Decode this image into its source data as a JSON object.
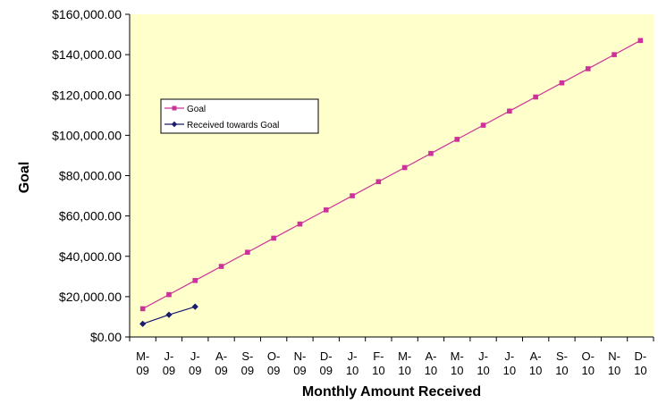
{
  "chart_data": {
    "type": "line",
    "title": "",
    "xlabel": "Monthly Amount Received",
    "ylabel": "Goal",
    "ylim": [
      0,
      160000
    ],
    "y_tick_values": [
      0,
      20000,
      40000,
      60000,
      80000,
      100000,
      120000,
      140000,
      160000
    ],
    "y_tick_labels": [
      "$0.00",
      "$20,000.00",
      "$40,000.00",
      "$60,000.00",
      "$80,000.00",
      "$100,000.00",
      "$120,000.00",
      "$140,000.00",
      "$160,000.00"
    ],
    "categories": [
      "M-09",
      "J-09",
      "J-09",
      "A-09",
      "S-09",
      "O-09",
      "N-09",
      "D-09",
      "J-10",
      "F-10",
      "M-10",
      "A-10",
      "M-10",
      "J-10",
      "J-10",
      "A-10",
      "S-10",
      "O-10",
      "N-10",
      "D-10"
    ],
    "category_lines": [
      [
        "M-",
        "09"
      ],
      [
        "J-",
        "09"
      ],
      [
        "J-",
        "09"
      ],
      [
        "A-",
        "09"
      ],
      [
        "S-",
        "09"
      ],
      [
        "O-",
        "09"
      ],
      [
        "N-",
        "09"
      ],
      [
        "D-",
        "09"
      ],
      [
        "J-",
        "10"
      ],
      [
        "F-",
        "10"
      ],
      [
        "M-",
        "10"
      ],
      [
        "A-",
        "10"
      ],
      [
        "M-",
        "10"
      ],
      [
        "J-",
        "10"
      ],
      [
        "J-",
        "10"
      ],
      [
        "A-",
        "10"
      ],
      [
        "S-",
        "10"
      ],
      [
        "O-",
        "10"
      ],
      [
        "N-",
        "10"
      ],
      [
        "D-",
        "10"
      ]
    ],
    "series": [
      {
        "name": "Goal",
        "color": "#cc3399",
        "marker": "square",
        "values": [
          14000,
          21000,
          28000,
          35000,
          42000,
          49000,
          56000,
          63000,
          70000,
          77000,
          84000,
          91000,
          98000,
          105000,
          112000,
          119000,
          126000,
          133000,
          140000,
          147000
        ]
      },
      {
        "name": "Received towards Goal",
        "color": "#1a1a6e",
        "marker": "diamond",
        "values": [
          6500,
          11000,
          15000,
          null,
          null,
          null,
          null,
          null,
          null,
          null,
          null,
          null,
          null,
          null,
          null,
          null,
          null,
          null,
          null,
          null
        ]
      }
    ],
    "plot_background": "#ffffcc",
    "grid": false,
    "legend_position": "upper-left-inside"
  }
}
